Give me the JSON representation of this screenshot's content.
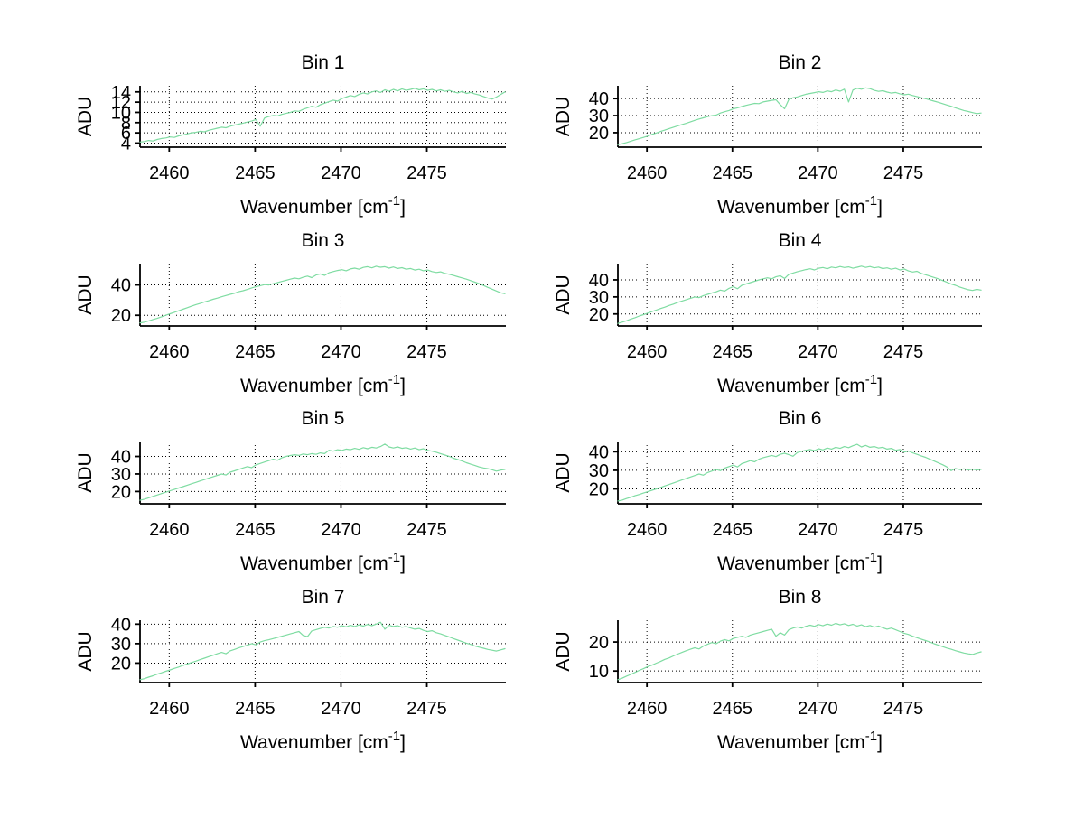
{
  "figure": {
    "background": "#ffffff",
    "line_color": "#7fdca2",
    "axis_color": "#000000",
    "grid_color": "#000000"
  },
  "chart_data": [
    {
      "type": "line",
      "title": "Bin 1",
      "xlabel": {
        "main": "Wavenumber [cm",
        "sup": "-1",
        "close": "]"
      },
      "ylabel": "ADU",
      "x_ticks": [
        2460,
        2465,
        2470,
        2475
      ],
      "y_ticks": [
        4,
        6,
        8,
        10,
        12,
        14
      ],
      "xlim": [
        2458.3,
        2479.6
      ],
      "ylim": [
        3.2,
        15.2
      ],
      "grid": true,
      "legend": "none",
      "x_start": 2458.3,
      "x_step": 0.25,
      "y": [
        4.2,
        4.3,
        4.5,
        4.4,
        4.7,
        4.9,
        5.0,
        5.2,
        5.1,
        5.4,
        5.6,
        5.8,
        6.0,
        6.1,
        6.3,
        6.2,
        6.5,
        6.7,
        6.9,
        7.1,
        7.0,
        7.3,
        7.5,
        7.7,
        7.9,
        8.1,
        8.3,
        8.6,
        7.3,
        8.9,
        9.2,
        9.4,
        9.3,
        9.6,
        9.8,
        10.0,
        10.3,
        10.2,
        10.6,
        10.9,
        11.2,
        11.0,
        11.5,
        11.8,
        12.1,
        12.4,
        12.2,
        12.7,
        13.0,
        13.3,
        13.1,
        13.5,
        13.8,
        13.6,
        14.0,
        14.2,
        13.9,
        14.4,
        14.1,
        14.5,
        14.2,
        14.6,
        14.3,
        14.5,
        14.7,
        14.4,
        14.6,
        14.3,
        14.5,
        14.2,
        14.4,
        14.1,
        14.3,
        14.0,
        13.8,
        14.1,
        13.7,
        13.9,
        13.6,
        13.4,
        13.1,
        12.8,
        12.6,
        13.0,
        13.5,
        14.0
      ]
    },
    {
      "type": "line",
      "title": "Bin 2",
      "xlabel": {
        "main": "Wavenumber [cm",
        "sup": "-1",
        "close": "]"
      },
      "ylabel": "ADU",
      "x_ticks": [
        2460,
        2465,
        2470,
        2475
      ],
      "y_ticks": [
        20,
        30,
        40
      ],
      "xlim": [
        2458.3,
        2479.6
      ],
      "ylim": [
        11.5,
        47.5
      ],
      "grid": true,
      "legend": "none",
      "x_start": 2458.3,
      "x_step": 0.25,
      "y": [
        13.0,
        13.5,
        14.2,
        15.0,
        15.8,
        16.5,
        17.2,
        18.0,
        19.0,
        19.8,
        20.7,
        21.5,
        22.4,
        23.2,
        24.0,
        24.8,
        25.5,
        26.4,
        27.2,
        28.0,
        28.7,
        29.4,
        30.0,
        30.3,
        31.5,
        32.3,
        33.0,
        34.0,
        34.6,
        35.3,
        36.0,
        36.6,
        37.2,
        37.0,
        38.0,
        38.5,
        39.0,
        39.3,
        36.5,
        34.0,
        39.5,
        40.5,
        41.0,
        41.8,
        42.5,
        43.0,
        43.5,
        44.0,
        43.6,
        44.5,
        44.0,
        45.0,
        44.3,
        45.5,
        38.0,
        45.0,
        46.0,
        45.5,
        46.3,
        45.8,
        44.8,
        44.2,
        44.6,
        43.8,
        43.2,
        43.6,
        42.8,
        42.2,
        42.6,
        41.8,
        41.2,
        40.5,
        40.0,
        39.2,
        38.5,
        37.8,
        37.0,
        36.2,
        35.5,
        34.6,
        33.8,
        33.0,
        32.4,
        31.8,
        31.2,
        31.5
      ]
    },
    {
      "type": "line",
      "title": "Bin 3",
      "xlabel": {
        "main": "Wavenumber [cm",
        "sup": "-1",
        "close": "]"
      },
      "ylabel": "ADU",
      "x_ticks": [
        2460,
        2465,
        2470,
        2475
      ],
      "y_ticks": [
        20,
        40
      ],
      "xlim": [
        2458.3,
        2479.6
      ],
      "ylim": [
        13,
        54
      ],
      "grid": true,
      "legend": "none",
      "x_start": 2458.3,
      "x_step": 0.25,
      "y": [
        15.0,
        15.5,
        16.3,
        17.2,
        18.0,
        19.0,
        20.0,
        21.0,
        22.0,
        23.0,
        24.0,
        25.0,
        26.0,
        27.0,
        27.8,
        28.8,
        29.6,
        30.5,
        31.3,
        32.2,
        33.0,
        33.8,
        34.5,
        35.5,
        36.2,
        37.0,
        38.0,
        38.8,
        39.5,
        40.2,
        40.0,
        40.8,
        41.5,
        42.3,
        43.0,
        43.8,
        44.5,
        44.0,
        45.0,
        45.8,
        44.8,
        46.5,
        47.2,
        46.3,
        48.0,
        48.8,
        49.5,
        50.0,
        49.3,
        50.5,
        51.0,
        50.3,
        51.5,
        52.0,
        51.2,
        52.3,
        51.6,
        52.0,
        51.0,
        51.8,
        50.8,
        51.3,
        50.3,
        50.8,
        49.8,
        50.3,
        49.3,
        49.8,
        48.8,
        48.2,
        48.6,
        47.6,
        47.0,
        46.2,
        45.4,
        44.6,
        43.8,
        42.8,
        41.8,
        40.8,
        39.6,
        38.4,
        37.2,
        36.0,
        34.8,
        34.2
      ]
    },
    {
      "type": "line",
      "title": "Bin 4",
      "xlabel": {
        "main": "Wavenumber [cm",
        "sup": "-1",
        "close": "]"
      },
      "ylabel": "ADU",
      "x_ticks": [
        2460,
        2465,
        2470,
        2475
      ],
      "y_ticks": [
        20,
        30,
        40
      ],
      "xlim": [
        2458.3,
        2479.6
      ],
      "ylim": [
        13,
        49.5
      ],
      "grid": true,
      "legend": "none",
      "x_start": 2458.3,
      "x_step": 0.25,
      "y": [
        14.5,
        15.2,
        16.0,
        17.0,
        17.8,
        18.8,
        19.6,
        20.5,
        21.4,
        22.3,
        23.2,
        24.0,
        25.0,
        25.8,
        26.8,
        27.6,
        28.4,
        29.2,
        30.0,
        29.6,
        30.8,
        31.5,
        32.3,
        33.0,
        34.0,
        33.4,
        35.0,
        36.0,
        34.8,
        36.8,
        37.6,
        38.4,
        39.2,
        40.0,
        40.6,
        41.2,
        40.6,
        41.8,
        42.4,
        40.8,
        43.2,
        44.0,
        44.8,
        45.4,
        46.0,
        46.5,
        45.8,
        46.8,
        47.2,
        46.5,
        47.5,
        47.0,
        47.8,
        47.2,
        47.6,
        46.8,
        47.4,
        48.0,
        47.3,
        47.8,
        47.0,
        47.5,
        46.6,
        47.0,
        46.2,
        46.8,
        45.8,
        46.4,
        45.2,
        44.6,
        45.0,
        43.8,
        43.0,
        42.2,
        41.4,
        40.6,
        39.6,
        38.6,
        37.6,
        36.8,
        35.8,
        35.0,
        34.2,
        33.8,
        34.4,
        34.0
      ]
    },
    {
      "type": "line",
      "title": "Bin 5",
      "xlabel": {
        "main": "Wavenumber [cm",
        "sup": "-1",
        "close": "]"
      },
      "ylabel": "ADU",
      "x_ticks": [
        2460,
        2465,
        2470,
        2475
      ],
      "y_ticks": [
        20,
        30,
        40
      ],
      "xlim": [
        2458.3,
        2479.6
      ],
      "ylim": [
        13,
        48.5
      ],
      "grid": true,
      "legend": "none",
      "x_start": 2458.3,
      "x_step": 0.25,
      "y": [
        15.0,
        15.6,
        16.4,
        17.2,
        18.0,
        18.8,
        19.6,
        20.4,
        21.2,
        22.0,
        22.8,
        23.6,
        24.4,
        25.2,
        26.0,
        26.8,
        27.6,
        28.4,
        29.2,
        30.0,
        29.4,
        31.0,
        31.8,
        32.6,
        33.4,
        34.2,
        33.6,
        35.2,
        36.0,
        36.8,
        37.6,
        38.4,
        37.8,
        39.2,
        40.0,
        40.5,
        41.0,
        40.6,
        41.4,
        41.0,
        41.6,
        41.2,
        42.0,
        41.6,
        43.5,
        43.0,
        43.8,
        43.4,
        44.2,
        43.8,
        44.6,
        44.0,
        45.0,
        44.4,
        45.2,
        44.8,
        45.6,
        47.0,
        45.4,
        44.8,
        45.4,
        44.6,
        45.0,
        44.2,
        44.8,
        43.8,
        44.4,
        43.4,
        43.0,
        42.4,
        41.6,
        40.8,
        40.0,
        39.0,
        38.2,
        37.4,
        36.4,
        35.6,
        34.8,
        34.0,
        33.4,
        33.0,
        32.4,
        31.6,
        32.2,
        32.6
      ]
    },
    {
      "type": "line",
      "title": "Bin 6",
      "xlabel": {
        "main": "Wavenumber [cm",
        "sup": "-1",
        "close": "]"
      },
      "ylabel": "ADU",
      "x_ticks": [
        2460,
        2465,
        2470,
        2475
      ],
      "y_ticks": [
        20,
        30,
        40
      ],
      "xlim": [
        2458.3,
        2479.6
      ],
      "ylim": [
        12,
        45.5
      ],
      "grid": true,
      "legend": "none",
      "x_start": 2458.3,
      "x_step": 0.25,
      "y": [
        13.5,
        14.0,
        14.8,
        15.5,
        16.3,
        17.0,
        17.8,
        18.5,
        19.3,
        20.0,
        20.8,
        21.6,
        22.4,
        23.2,
        24.0,
        24.8,
        25.6,
        26.4,
        27.2,
        28.0,
        27.4,
        28.8,
        29.6,
        30.4,
        29.8,
        31.2,
        32.0,
        32.8,
        31.8,
        33.6,
        34.4,
        35.2,
        34.6,
        36.0,
        36.8,
        37.4,
        38.0,
        37.4,
        38.6,
        39.2,
        38.4,
        37.6,
        39.6,
        40.2,
        40.8,
        41.2,
        40.6,
        41.6,
        41.0,
        42.0,
        41.4,
        42.4,
        41.8,
        42.8,
        42.2,
        43.2,
        44.0,
        42.6,
        43.4,
        42.4,
        42.8,
        42.0,
        42.4,
        41.4,
        41.8,
        40.8,
        41.2,
        39.8,
        40.4,
        39.4,
        38.6,
        37.8,
        37.0,
        36.0,
        35.0,
        34.0,
        33.0,
        31.8,
        29.8,
        31.0,
        30.4,
        30.8,
        30.2,
        30.6,
        30.2,
        30.5
      ]
    },
    {
      "type": "line",
      "title": "Bin 7",
      "xlabel": {
        "main": "Wavenumber [cm",
        "sup": "-1",
        "close": "]"
      },
      "ylabel": "ADU",
      "x_ticks": [
        2460,
        2465,
        2470,
        2475
      ],
      "y_ticks": [
        20,
        30,
        40
      ],
      "xlim": [
        2458.3,
        2479.6
      ],
      "ylim": [
        10,
        42
      ],
      "grid": true,
      "legend": "none",
      "x_start": 2458.3,
      "x_step": 0.25,
      "y": [
        11.5,
        12.0,
        12.8,
        13.5,
        14.3,
        15.0,
        15.8,
        16.5,
        17.3,
        18.0,
        18.8,
        19.5,
        20.3,
        21.0,
        21.8,
        22.5,
        23.3,
        24.0,
        24.8,
        25.5,
        24.8,
        26.3,
        27.0,
        27.8,
        28.5,
        29.2,
        30.0,
        29.4,
        30.8,
        31.5,
        32.0,
        32.6,
        33.2,
        33.8,
        34.4,
        35.0,
        35.6,
        36.2,
        34.2,
        33.6,
        36.5,
        37.2,
        37.8,
        38.4,
        38.0,
        38.8,
        38.4,
        39.2,
        38.6,
        39.4,
        38.8,
        39.6,
        39.0,
        39.8,
        39.2,
        40.0,
        41.0,
        37.4,
        39.4,
        38.8,
        39.2,
        38.4,
        38.8,
        38.0,
        37.4,
        37.8,
        36.8,
        36.2,
        36.6,
        35.6,
        35.0,
        34.2,
        33.4,
        32.6,
        31.8,
        31.0,
        30.2,
        29.6,
        28.8,
        28.2,
        27.6,
        27.0,
        26.6,
        26.2,
        26.8,
        27.4
      ]
    },
    {
      "type": "line",
      "title": "Bin 8",
      "xlabel": {
        "main": "Wavenumber [cm",
        "sup": "-1",
        "close": "]"
      },
      "ylabel": "ADU",
      "x_ticks": [
        2460,
        2465,
        2470,
        2475
      ],
      "y_ticks": [
        10,
        20
      ],
      "xlim": [
        2458.3,
        2479.6
      ],
      "ylim": [
        6,
        27.5
      ],
      "grid": true,
      "legend": "none",
      "x_start": 2458.3,
      "x_step": 0.25,
      "y": [
        7.0,
        7.5,
        8.2,
        8.8,
        9.5,
        10.2,
        10.8,
        11.5,
        12.0,
        12.7,
        13.3,
        14.0,
        14.5,
        15.2,
        15.8,
        16.4,
        17.0,
        17.5,
        18.0,
        17.6,
        18.6,
        19.2,
        19.8,
        19.4,
        20.3,
        20.8,
        20.4,
        21.2,
        21.6,
        22.0,
        21.6,
        22.4,
        22.8,
        23.2,
        23.6,
        24.0,
        24.4,
        22.0,
        23.2,
        22.4,
        24.2,
        24.8,
        25.2,
        24.8,
        25.4,
        25.8,
        25.4,
        26.0,
        25.6,
        26.2,
        25.8,
        26.4,
        25.9,
        26.3,
        25.7,
        26.1,
        25.5,
        25.9,
        25.3,
        25.7,
        25.1,
        25.5,
        24.9,
        24.4,
        24.8,
        24.2,
        23.6,
        23.0,
        22.6,
        22.0,
        21.5,
        21.0,
        20.5,
        20.0,
        19.4,
        18.9,
        18.4,
        17.9,
        17.5,
        17.0,
        16.6,
        16.2,
        15.9,
        15.7,
        16.2,
        16.6
      ]
    }
  ]
}
